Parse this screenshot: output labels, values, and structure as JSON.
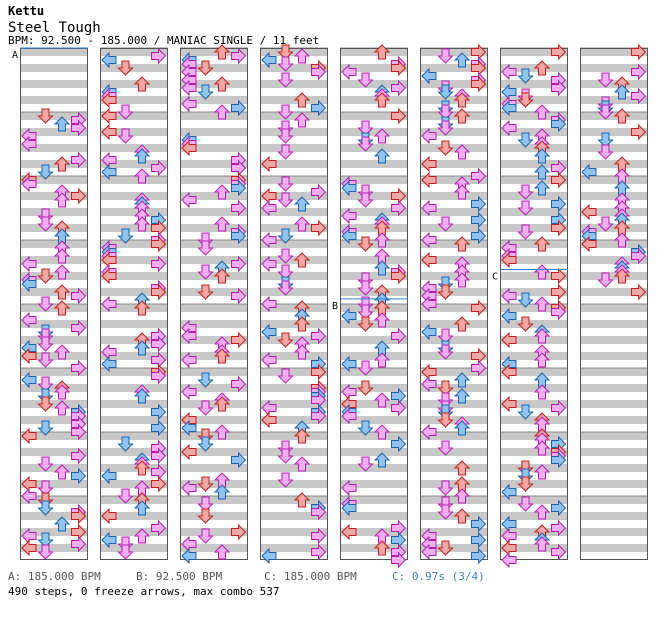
{
  "song": {
    "artist": "Kettu",
    "title": "Steel Tough",
    "info": "BPM: 92.500 - 185.000 / MANIAC SINGLE / 11 feet"
  },
  "markers": [
    {
      "label": "A",
      "column": 0,
      "measure": 0
    },
    {
      "label": "B",
      "column": 4,
      "measure": 3.92
    },
    {
      "label": "C",
      "column": 6,
      "measure": 3.46
    }
  ],
  "footer": {
    "bpm_a": "A: 185.000 BPM",
    "bpm_b": "B: 92.500 BPM",
    "bpm_c": "C: 185.000 BPM",
    "stop": "C: 0.97s (3/4)",
    "summary": "490 steps, 0 freeze arrows, max combo 537"
  },
  "colors": {
    "stripe": "#c8c8c8",
    "quarter_arrow": "#f4a6a6",
    "eighth_arrow": "#8fc3ee",
    "sixteenth_arrow": "#f4aef4",
    "bpm_line": "#3a7fd5",
    "stop_text": "#3a7fd5"
  },
  "chart": {
    "columns": 8,
    "measures_per_column": 8,
    "steps": 490,
    "freeze_arrows": 0,
    "max_combo": 537
  }
}
